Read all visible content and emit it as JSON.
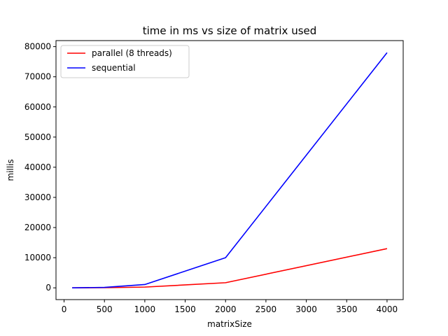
{
  "chart_data": {
    "type": "line",
    "title": "time in ms vs size of matrix used",
    "xlabel": "matrixSize",
    "ylabel": "millis",
    "xlim": [
      -100,
      4200
    ],
    "ylim": [
      -3900,
      82000
    ],
    "xticks": [
      0,
      500,
      1000,
      1500,
      2000,
      2500,
      3000,
      3500,
      4000
    ],
    "yticks": [
      0,
      10000,
      20000,
      30000,
      40000,
      50000,
      60000,
      70000,
      80000
    ],
    "grid": false,
    "legend_position": "top-left",
    "series": [
      {
        "name": "parallel (8 threads)",
        "color": "#ff0000",
        "x": [
          100,
          500,
          1000,
          2000,
          4000
        ],
        "y": [
          0,
          50,
          250,
          1700,
          13000
        ]
      },
      {
        "name": "sequential",
        "color": "#0000ff",
        "x": [
          100,
          500,
          1000,
          2000,
          4000
        ],
        "y": [
          0,
          150,
          1100,
          10000,
          78000
        ]
      }
    ]
  }
}
